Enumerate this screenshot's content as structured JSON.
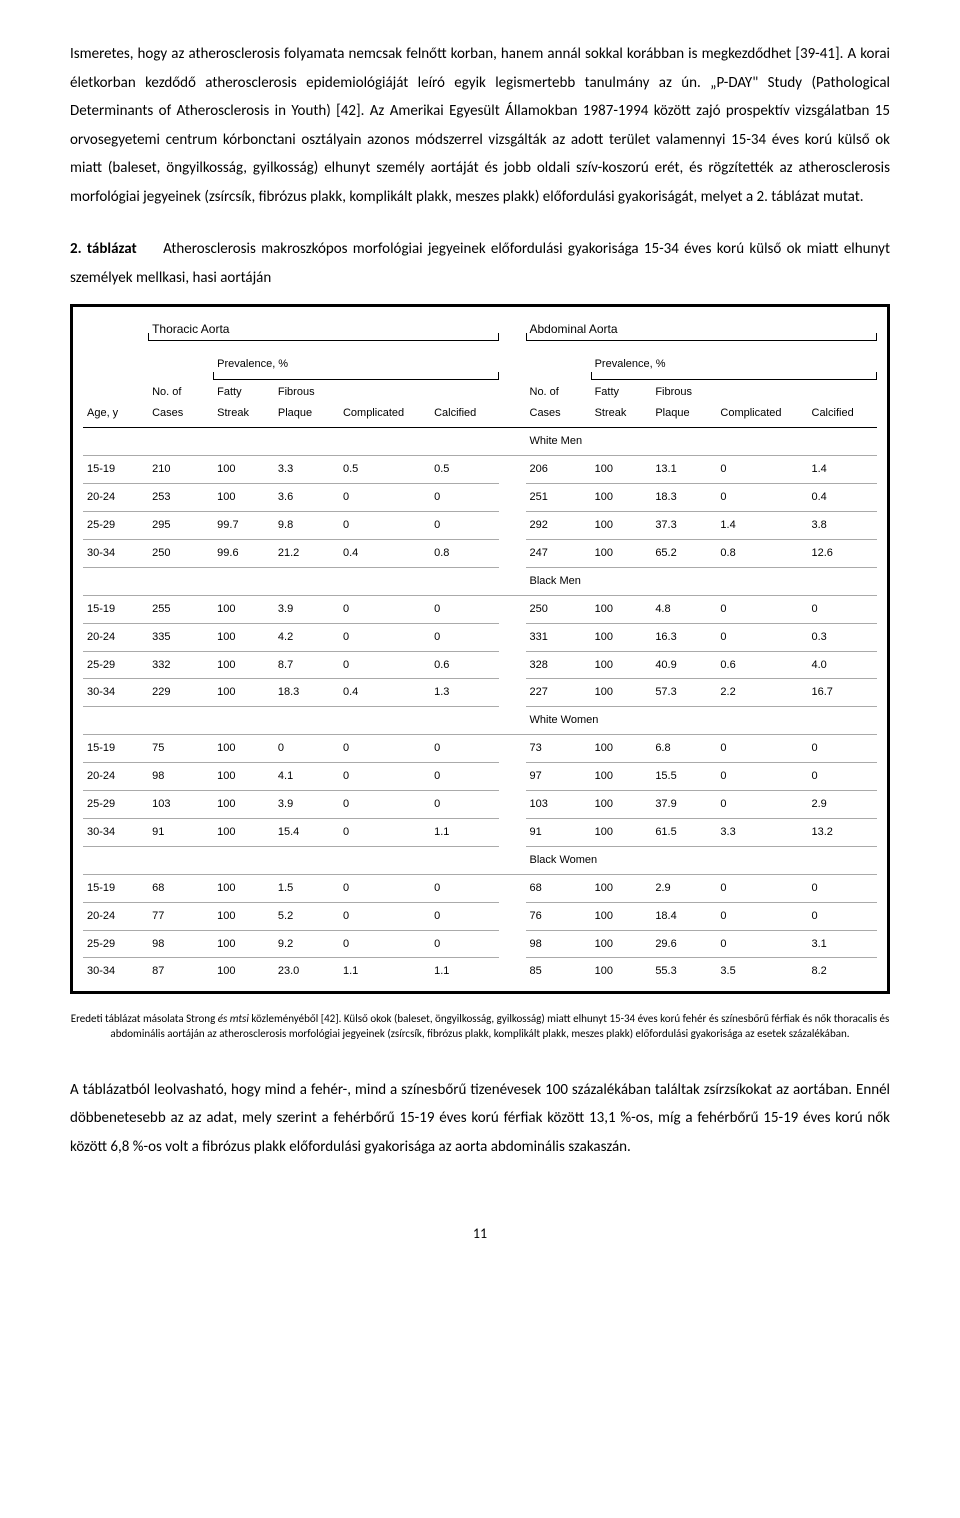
{
  "para1": "Ismeretes, hogy az atherosclerosis folyamata nemcsak felnőtt korban, hanem annál sokkal korábban is megkezdődhet [39-41]. A korai életkorban kezdődő atherosclerosis epidemiológiáját leíró egyik legismertebb tanulmány az ún. „P-DAY\" Study (Pathological Determinants of Atherosclerosis in Youth) [42]. Az Amerikai Egyesült Államokban 1987-1994 között zajó prospektív vizsgálatban 15 orvosegyetemi centrum kórbonctani osztályain azonos módszerrel vizsgálták az adott terület valamennyi 15-34 éves korú külső ok miatt (baleset, öngyilkosság, gyilkosság) elhunyt személy aortáját és jobb oldali szív-koszorú erét, és rögzítették az atherosclerosis morfológiai jegyeinek (zsírcsík, fibrózus plakk, komplikált plakk, meszes plakk) előfordulási gyakoriságát, melyet a 2. táblázat mutat.",
  "caption_label": "2. táblázat",
  "caption_text": "Atherosclerosis makroszkópos morfológiai jegyeinek előfordulási gyakorisága 15-34 éves korú külső ok miatt elhunyt személyek mellkasi, hasi aortáján",
  "table": {
    "group_left": "Thoracic Aorta",
    "group_right": "Abdominal Aorta",
    "prevalence": "Prevalence, %",
    "cols": {
      "age": "Age, y",
      "ncases": "No. of\nCases",
      "fatty": "Fatty\nStreak",
      "fibrous": "Fibrous\nPlaque",
      "compl": "Complicated",
      "calc": "Calcified"
    },
    "subgroups": [
      "White Men",
      "Black Men",
      "White Women",
      "Black Women"
    ],
    "data": {
      "White Men": [
        {
          "age": "15-19",
          "n1": "210",
          "fs1": "100",
          "fp1": "3.3",
          "co1": "0.5",
          "ca1": "0.5",
          "n2": "206",
          "fs2": "100",
          "fp2": "13.1",
          "co2": "0",
          "ca2": "1.4"
        },
        {
          "age": "20-24",
          "n1": "253",
          "fs1": "100",
          "fp1": "3.6",
          "co1": "0",
          "ca1": "0",
          "n2": "251",
          "fs2": "100",
          "fp2": "18.3",
          "co2": "0",
          "ca2": "0.4"
        },
        {
          "age": "25-29",
          "n1": "295",
          "fs1": "99.7",
          "fp1": "9.8",
          "co1": "0",
          "ca1": "0",
          "n2": "292",
          "fs2": "100",
          "fp2": "37.3",
          "co2": "1.4",
          "ca2": "3.8"
        },
        {
          "age": "30-34",
          "n1": "250",
          "fs1": "99.6",
          "fp1": "21.2",
          "co1": "0.4",
          "ca1": "0.8",
          "n2": "247",
          "fs2": "100",
          "fp2": "65.2",
          "co2": "0.8",
          "ca2": "12.6"
        }
      ],
      "Black Men": [
        {
          "age": "15-19",
          "n1": "255",
          "fs1": "100",
          "fp1": "3.9",
          "co1": "0",
          "ca1": "0",
          "n2": "250",
          "fs2": "100",
          "fp2": "4.8",
          "co2": "0",
          "ca2": "0"
        },
        {
          "age": "20-24",
          "n1": "335",
          "fs1": "100",
          "fp1": "4.2",
          "co1": "0",
          "ca1": "0",
          "n2": "331",
          "fs2": "100",
          "fp2": "16.3",
          "co2": "0",
          "ca2": "0.3"
        },
        {
          "age": "25-29",
          "n1": "332",
          "fs1": "100",
          "fp1": "8.7",
          "co1": "0",
          "ca1": "0.6",
          "n2": "328",
          "fs2": "100",
          "fp2": "40.9",
          "co2": "0.6",
          "ca2": "4.0"
        },
        {
          "age": "30-34",
          "n1": "229",
          "fs1": "100",
          "fp1": "18.3",
          "co1": "0.4",
          "ca1": "1.3",
          "n2": "227",
          "fs2": "100",
          "fp2": "57.3",
          "co2": "2.2",
          "ca2": "16.7"
        }
      ],
      "White Women": [
        {
          "age": "15-19",
          "n1": "75",
          "fs1": "100",
          "fp1": "0",
          "co1": "0",
          "ca1": "0",
          "n2": "73",
          "fs2": "100",
          "fp2": "6.8",
          "co2": "0",
          "ca2": "0"
        },
        {
          "age": "20-24",
          "n1": "98",
          "fs1": "100",
          "fp1": "4.1",
          "co1": "0",
          "ca1": "0",
          "n2": "97",
          "fs2": "100",
          "fp2": "15.5",
          "co2": "0",
          "ca2": "0"
        },
        {
          "age": "25-29",
          "n1": "103",
          "fs1": "100",
          "fp1": "3.9",
          "co1": "0",
          "ca1": "0",
          "n2": "103",
          "fs2": "100",
          "fp2": "37.9",
          "co2": "0",
          "ca2": "2.9"
        },
        {
          "age": "30-34",
          "n1": "91",
          "fs1": "100",
          "fp1": "15.4",
          "co1": "0",
          "ca1": "1.1",
          "n2": "91",
          "fs2": "100",
          "fp2": "61.5",
          "co2": "3.3",
          "ca2": "13.2"
        }
      ],
      "Black Women": [
        {
          "age": "15-19",
          "n1": "68",
          "fs1": "100",
          "fp1": "1.5",
          "co1": "0",
          "ca1": "0",
          "n2": "68",
          "fs2": "100",
          "fp2": "2.9",
          "co2": "0",
          "ca2": "0"
        },
        {
          "age": "20-24",
          "n1": "77",
          "fs1": "100",
          "fp1": "5.2",
          "co1": "0",
          "ca1": "0",
          "n2": "76",
          "fs2": "100",
          "fp2": "18.4",
          "co2": "0",
          "ca2": "0"
        },
        {
          "age": "25-29",
          "n1": "98",
          "fs1": "100",
          "fp1": "9.2",
          "co1": "0",
          "ca1": "0",
          "n2": "98",
          "fs2": "100",
          "fp2": "29.6",
          "co2": "0",
          "ca2": "3.1"
        },
        {
          "age": "30-34",
          "n1": "87",
          "fs1": "100",
          "fp1": "23.0",
          "co1": "1.1",
          "ca1": "1.1",
          "n2": "85",
          "fs2": "100",
          "fp2": "55.3",
          "co2": "3.5",
          "ca2": "8.2"
        }
      ]
    }
  },
  "footnote_lead": "Eredeti táblázat másolata Strong",
  "footnote_ital": " és mtsi ",
  "footnote_rest": "közleményéből [42]. Külső okok (baleset, öngyilkosság, gyilkosság) miatt elhunyt 15-34 éves korú fehér és színesbőrű férfiak és nők thoracalis és abdominális aortáján az atherosclerosis morfológiai jegyeinek (zsírcsík, fibrózus plakk, komplikált plakk, meszes plakk) előfordulási gyakorisága az esetek százalékában.",
  "para2": "A táblázatból leolvasható, hogy mind a fehér-, mind a színesbőrű tizenévesek 100 százalékában találtak zsírzsíkokat az aortában. Ennél döbbenetesebb az az adat, mely szerint a fehérbőrű 15-19 éves korú férfiak között 13,1 %-os, míg a fehérbőrű 15-19 éves korú nők között 6,8 %-os volt a fibrózus plakk előfordulási gyakorisága az aorta abdominális szakaszán.",
  "page_number": "11"
}
